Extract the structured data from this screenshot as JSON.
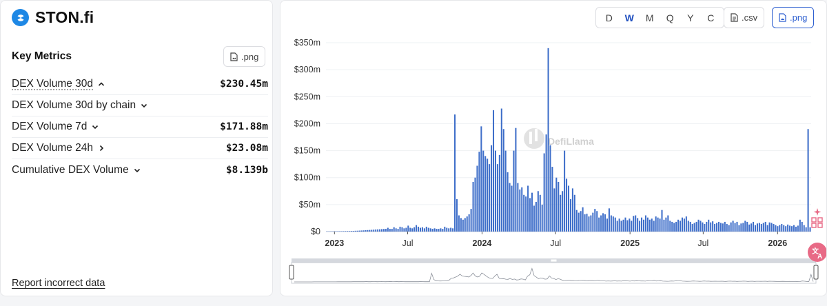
{
  "brand": {
    "name": "STON.fi",
    "logo_icon": "ston-logo-icon",
    "accent": "#1e88e5"
  },
  "key_metrics": {
    "title": "Key Metrics",
    "png_label": ".png",
    "rows": [
      {
        "label": "DEX Volume 30d",
        "value": "$230.45m",
        "chevron": "up",
        "underlined": true
      },
      {
        "label": "DEX Volume 30d by chain",
        "value": "",
        "chevron": "down",
        "underlined": false
      },
      {
        "label": "DEX Volume 7d",
        "value": "$171.88m",
        "chevron": "down",
        "underlined": false
      },
      {
        "label": "DEX Volume 24h",
        "value": "$23.08m",
        "chevron": "right",
        "underlined": false
      },
      {
        "label": "Cumulative DEX Volume",
        "value": "$8.139b",
        "chevron": "down",
        "underlined": false
      }
    ]
  },
  "report_link": "Report incorrect data",
  "toolbar": {
    "periods": [
      "D",
      "W",
      "M",
      "Q",
      "Y",
      "C"
    ],
    "active_period": "W",
    "csv_label": ".csv",
    "png_label": ".png"
  },
  "watermark": "DefiLlama",
  "colors": {
    "bar": "#3e6ec9",
    "active": "#1f4fbf",
    "brush_line": "#8a8f99"
  },
  "chart_data": {
    "type": "bar",
    "title": "",
    "xlabel": "",
    "ylabel": "",
    "interval": "weekly",
    "y_ticks": [
      "$0",
      "$50m",
      "$100m",
      "$150m",
      "$200m",
      "$250m",
      "$300m",
      "$350m"
    ],
    "ylim": [
      0,
      350
    ],
    "y_unit": "$m",
    "x_ticks": [
      "2023",
      "Jul",
      "2024",
      "Jul",
      "2025",
      "Jul",
      "2026"
    ],
    "x_range": [
      "2022-12-11",
      "2026-03-25"
    ],
    "grid": true,
    "legend": "none",
    "series": [
      {
        "values": [
          0.5,
          0.5,
          0.5,
          0.5,
          0.6,
          0.6,
          0.7,
          0.7,
          0.8,
          0.9,
          1,
          1,
          1.2,
          1.3,
          1.5,
          1.6,
          1.8,
          2,
          2.2,
          2.5,
          2.8,
          3,
          3.2,
          3.5,
          3.8,
          4,
          4.2,
          4.5,
          4.8,
          5,
          7,
          5,
          5,
          8,
          6,
          5,
          9,
          8,
          6,
          7,
          11,
          7,
          6,
          8,
          12,
          9,
          7,
          8,
          6,
          9,
          7,
          6,
          5,
          6,
          5,
          5,
          6,
          5,
          9,
          7,
          6,
          7,
          6,
          217,
          60,
          30,
          25,
          22,
          25,
          28,
          32,
          42,
          92,
          100,
          122,
          148,
          195,
          150,
          140,
          135,
          125,
          160,
          225,
          150,
          125,
          142,
          228,
          190,
          150,
          110,
          90,
          85,
          150,
          192,
          90,
          78,
          82,
          68,
          65,
          85,
          62,
          72,
          48,
          55,
          75,
          68,
          50,
          145,
          180,
          340,
          160,
          120,
          80,
          100,
          92,
          68,
          75,
          150,
          98,
          85,
          60,
          80,
          68,
          40,
          35,
          38,
          45,
          32,
          33,
          28,
          30,
          35,
          42,
          38,
          26,
          30,
          34,
          32,
          24,
          43,
          30,
          28,
          26,
          20,
          24,
          20,
          22,
          26,
          21,
          24,
          20,
          29,
          30,
          25,
          20,
          26,
          22,
          30,
          26,
          22,
          24,
          20,
          28,
          26,
          24,
          40,
          22,
          26,
          30,
          20,
          18,
          16,
          18,
          22,
          20,
          26,
          24,
          28,
          20,
          18,
          14,
          16,
          18,
          22,
          20,
          17,
          14,
          18,
          22,
          17,
          19,
          14,
          16,
          18,
          16,
          15,
          18,
          14,
          12,
          17,
          20,
          16,
          18,
          12,
          15,
          16,
          20,
          18,
          13,
          15,
          18,
          12,
          15,
          16,
          14,
          16,
          18,
          12,
          17,
          16,
          14,
          12,
          10,
          12,
          14,
          12,
          10,
          13,
          11,
          10,
          12,
          9,
          11,
          22,
          18,
          12,
          8,
          190,
          8
        ]
      }
    ]
  }
}
